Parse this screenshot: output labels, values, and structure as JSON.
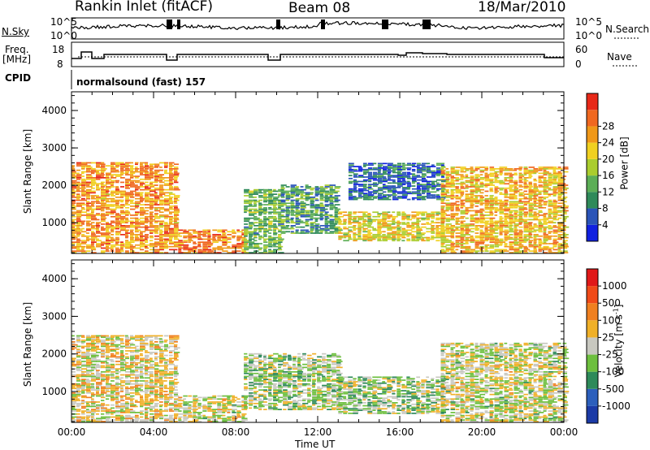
{
  "header": {
    "station": "Rankin Inlet (fitACF)",
    "beam": "Beam 08",
    "date": "18/Mar/2010"
  },
  "nsky_panel": {
    "left_label": "N.Sky",
    "left_ticks": [
      "10^5",
      "10^0"
    ],
    "right_label": "N.Search",
    "right_ticks": [
      "10^5",
      "10^0"
    ]
  },
  "freq_panel": {
    "left_label_line1": "Freq.",
    "left_label_line2": "[MHz]",
    "left_ticks": [
      "18",
      "8"
    ],
    "right_label": "Nave",
    "right_ticks": [
      "60",
      "0"
    ]
  },
  "cpid": {
    "label": "CPID",
    "value": "normalsound (fast) 157"
  },
  "colors": {
    "power_scale": [
      "#1020e0",
      "#2a54b8",
      "#2f8a5a",
      "#5cae56",
      "#aacd2e",
      "#f0d020",
      "#f09818",
      "#f06820",
      "#e82818"
    ],
    "velocity_scale": [
      "#1b3aa6",
      "#2c5fbc",
      "#2e8a5a",
      "#6dbf3e",
      "#c8c8c0",
      "#f0b028",
      "#f08020",
      "#f04a18",
      "#e01818"
    ]
  },
  "chart_data": [
    {
      "type": "heatmap",
      "title": "",
      "xlabel": "",
      "ylabel": "Slant Range [km]",
      "xlim": [
        "00:00",
        "24:00"
      ],
      "ylim": [
        180,
        4500
      ],
      "yticks": [
        "1000",
        "2000",
        "3000",
        "4000"
      ],
      "colorbar": {
        "label": "Power [dB]",
        "ticks": [
          "4",
          "8",
          "12",
          "16",
          "20",
          "24",
          "28"
        ],
        "range": [
          0,
          30
        ]
      },
      "regions": [
        {
          "t_start": 0.0,
          "t_end": 5.2,
          "r_min": 180,
          "r_max": 2600,
          "value": 22
        },
        {
          "t_start": 5.2,
          "t_end": 8.4,
          "r_min": 180,
          "r_max": 800,
          "value": 24
        },
        {
          "t_start": 8.4,
          "t_end": 10.2,
          "r_min": 180,
          "r_max": 1900,
          "value": 12
        },
        {
          "t_start": 10.2,
          "t_end": 13.0,
          "r_min": 700,
          "r_max": 2000,
          "value": 10
        },
        {
          "t_start": 13.0,
          "t_end": 18.0,
          "r_min": 500,
          "r_max": 1300,
          "value": 18
        },
        {
          "t_start": 13.5,
          "t_end": 18.2,
          "r_min": 1600,
          "r_max": 2600,
          "value": 6
        },
        {
          "t_start": 18.0,
          "t_end": 24.0,
          "r_min": 180,
          "r_max": 2500,
          "value": 20
        }
      ]
    },
    {
      "type": "heatmap",
      "title": "",
      "xlabel": "Time UT",
      "ylabel": "Slant Range [km]",
      "xlim": [
        "00:00",
        "24:00"
      ],
      "ylim": [
        180,
        4500
      ],
      "xticks": [
        "00:00",
        "04:00",
        "08:00",
        "12:00",
        "16:00",
        "20:00",
        "00:00"
      ],
      "yticks": [
        "1000",
        "2000",
        "3000",
        "4000"
      ],
      "colorbar": {
        "label": "Velocity [m s^-1]",
        "label_main": "Velocity [m s",
        "label_sup": "-1",
        "label_end": "]",
        "ticks": [
          "1000",
          "500",
          "100",
          "25",
          "-25",
          "-100",
          "-500",
          "-1000"
        ],
        "range": [
          -1000,
          1000
        ]
      },
      "regions": [
        {
          "t_start": 0.0,
          "t_end": 5.2,
          "r_min": 180,
          "r_max": 2500,
          "value": 100
        },
        {
          "t_start": 5.2,
          "t_end": 8.4,
          "r_min": 180,
          "r_max": 900,
          "value": 0
        },
        {
          "t_start": 8.4,
          "t_end": 13.0,
          "r_min": 500,
          "r_max": 2000,
          "value": -100
        },
        {
          "t_start": 13.0,
          "t_end": 18.0,
          "r_min": 400,
          "r_max": 1400,
          "value": -150
        },
        {
          "t_start": 18.0,
          "t_end": 24.0,
          "r_min": 180,
          "r_max": 2300,
          "value": 0
        }
      ]
    }
  ]
}
